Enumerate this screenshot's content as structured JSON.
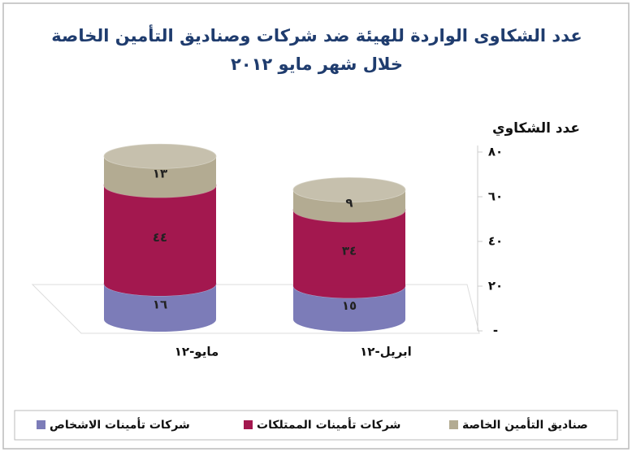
{
  "chart_data": {
    "type": "bar3d_stacked",
    "title": [
      "عدد الشكاوى الواردة للهيئة ضد شركات وصناديق التأمين الخاصة",
      "خلال شهر مايو ٢٠١٢"
    ],
    "y_axis_label": "عدد الشكاوي",
    "categories": [
      "مايو-١٢",
      "ابريل-١٢"
    ],
    "series": [
      {
        "name": "شركات تأمينات الاشخاص",
        "color": "#7c7cb8",
        "values": [
          16,
          15
        ],
        "value_labels": [
          "١٦",
          "١٥"
        ]
      },
      {
        "name": "شركات تأمينات الممتلكات",
        "color": "#a3184f",
        "values": [
          44,
          34
        ],
        "value_labels": [
          "٤٤",
          "٣٤"
        ]
      },
      {
        "name": "صناديق التأمين الخاصة",
        "color": "#b3ab92",
        "values": [
          13,
          9
        ],
        "value_labels": [
          "١٣",
          "٩"
        ]
      }
    ],
    "ylim": [
      0,
      80
    ],
    "yticks": [
      {
        "value": 0,
        "label": "-"
      },
      {
        "value": 20,
        "label": "٢٠"
      },
      {
        "value": 40,
        "label": "٤٠"
      },
      {
        "value": 60,
        "label": "٦٠"
      },
      {
        "value": 80,
        "label": "٨٠"
      }
    ],
    "legend": "bottom"
  }
}
